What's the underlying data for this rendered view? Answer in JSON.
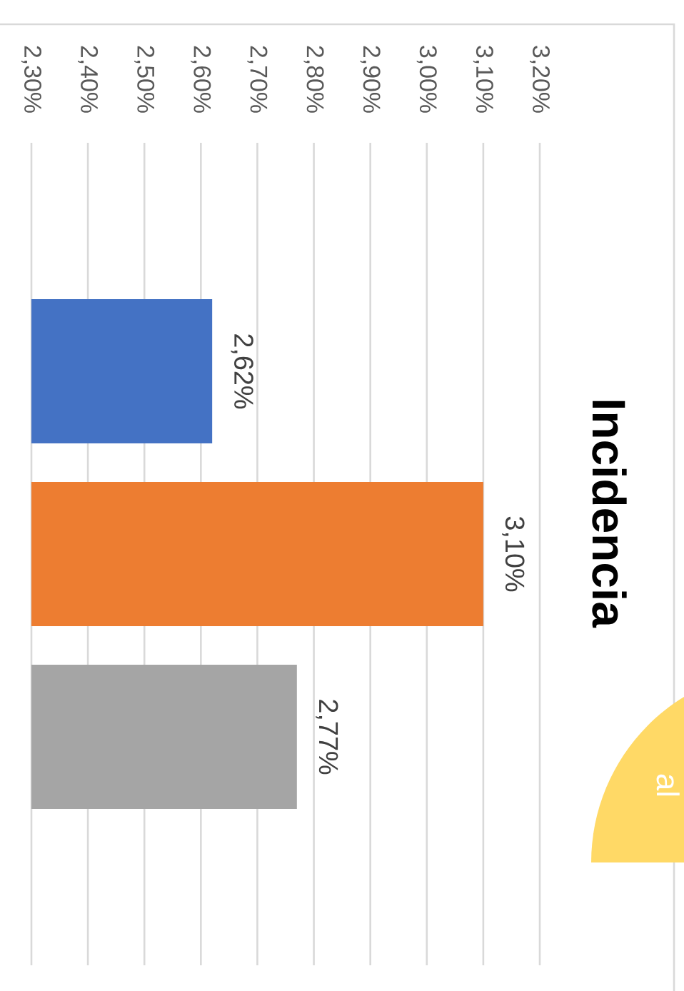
{
  "chart_data": {
    "type": "bar",
    "orientation": "horizontal",
    "title": "Incidencia",
    "categories": [
      null,
      null,
      null
    ],
    "values": [
      2.62,
      3.1,
      2.77
    ],
    "colors": [
      "#4472c4",
      "#ed7d31",
      "#a5a5a5"
    ],
    "value_labels": [
      "2,62%",
      "3,10%",
      "2,77%"
    ],
    "xlim": [
      2.3,
      3.2
    ],
    "xticks": [
      {
        "value": 2.3,
        "label": "2,30%"
      },
      {
        "value": 2.4,
        "label": "2,40%"
      },
      {
        "value": 2.5,
        "label": "2,50%"
      },
      {
        "value": 2.6,
        "label": "2,60%"
      },
      {
        "value": 2.7,
        "label": "2,70%"
      },
      {
        "value": 2.8,
        "label": "2,80%"
      },
      {
        "value": 2.9,
        "label": "2,90%"
      },
      {
        "value": 3.0,
        "label": "3,00%"
      },
      {
        "value": 3.1,
        "label": "3,10%"
      },
      {
        "value": 3.2,
        "label": "3,20%"
      }
    ],
    "grid": "x",
    "annotations": [
      "al"
    ]
  }
}
